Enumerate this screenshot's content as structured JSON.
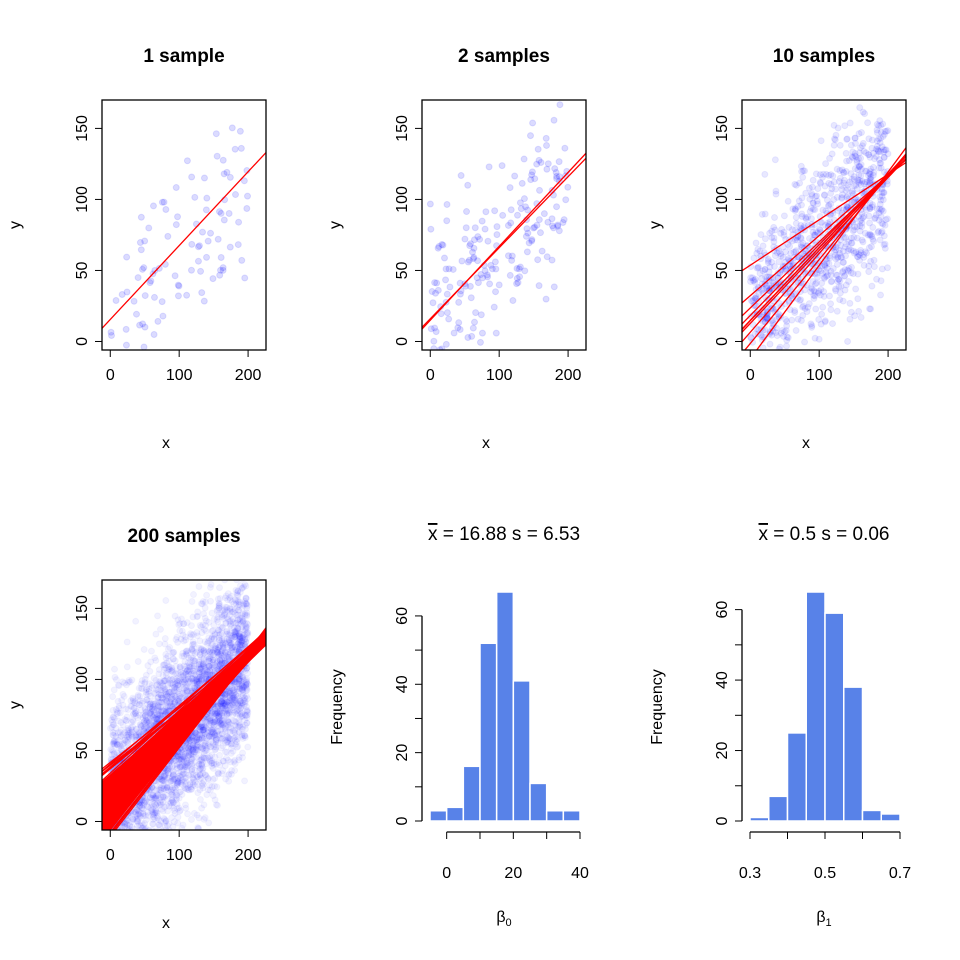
{
  "chart_data": [
    {
      "type": "scatter",
      "title": "1 sample",
      "xlabel": "x",
      "ylabel": "y",
      "xticks": [
        0,
        100,
        200
      ],
      "yticks": [
        0,
        50,
        100,
        150
      ],
      "xlim": [
        -12,
        226
      ],
      "ylim": [
        -6,
        170
      ],
      "samples": 1,
      "point_color": "#0000ff",
      "line_color": "#ff0000",
      "fitted_lines": [
        {
          "intercept": 15.5,
          "slope": 0.52
        }
      ]
    },
    {
      "type": "scatter",
      "title": "2 samples",
      "xlabel": "x",
      "ylabel": "y",
      "xticks": [
        0,
        100,
        200
      ],
      "yticks": [
        0,
        50,
        100,
        150
      ],
      "xlim": [
        -12,
        226
      ],
      "ylim": [
        -6,
        170
      ],
      "samples": 2,
      "point_color": "#0000ff",
      "line_color": "#ff0000",
      "fitted_lines": [
        {
          "intercept": 15,
          "slope": 0.52
        },
        {
          "intercept": 16,
          "slope": 0.5
        }
      ]
    },
    {
      "type": "scatter",
      "title": "10 samples",
      "xlabel": "x",
      "ylabel": "y",
      "xticks": [
        0,
        100,
        200
      ],
      "yticks": [
        0,
        50,
        100,
        150
      ],
      "xlim": [
        -12,
        226
      ],
      "ylim": [
        -6,
        170
      ],
      "samples": 10,
      "point_color": "#0000ff",
      "line_color": "#ff0000"
    },
    {
      "type": "scatter",
      "title": "200 samples",
      "xlabel": "x",
      "ylabel": "y",
      "xticks": [
        0,
        100,
        200
      ],
      "yticks": [
        0,
        50,
        100,
        150
      ],
      "xlim": [
        -12,
        226
      ],
      "ylim": [
        -6,
        170
      ],
      "samples": 200,
      "point_color": "#0000ff",
      "line_color": "#ff0000"
    },
    {
      "type": "bar",
      "title_stat": "x",
      "title_rest": " = 16.88  s = 6.53",
      "mean": 16.88,
      "sd": 6.53,
      "xlabel": "β",
      "xlabel_sub": "0",
      "ylabel": "Frequency",
      "bin_edges": [
        -5,
        0,
        5,
        10,
        15,
        20,
        25,
        30,
        35,
        40
      ],
      "values": [
        3,
        4,
        16,
        52,
        67,
        41,
        11,
        3,
        3
      ],
      "xticks": [
        0,
        20,
        40
      ],
      "yticks": [
        0,
        20,
        40,
        60
      ],
      "ylim": [
        0,
        67
      ],
      "color": "#5882e8"
    },
    {
      "type": "bar",
      "title_stat": "x",
      "title_rest": " = 0.5  s = 0.06",
      "mean": 0.5,
      "sd": 0.06,
      "xlabel": "β",
      "xlabel_sub": "1",
      "ylabel": "Frequency",
      "bin_edges": [
        0.3,
        0.35,
        0.4,
        0.45,
        0.5,
        0.55,
        0.6,
        0.65,
        0.7
      ],
      "values": [
        1,
        7,
        25,
        65,
        59,
        38,
        3,
        2
      ],
      "xticks": [
        0.3,
        0.5,
        0.7
      ],
      "yticks": [
        0,
        20,
        40,
        60
      ],
      "ylim": [
        0,
        65
      ],
      "color": "#5882e8"
    }
  ]
}
